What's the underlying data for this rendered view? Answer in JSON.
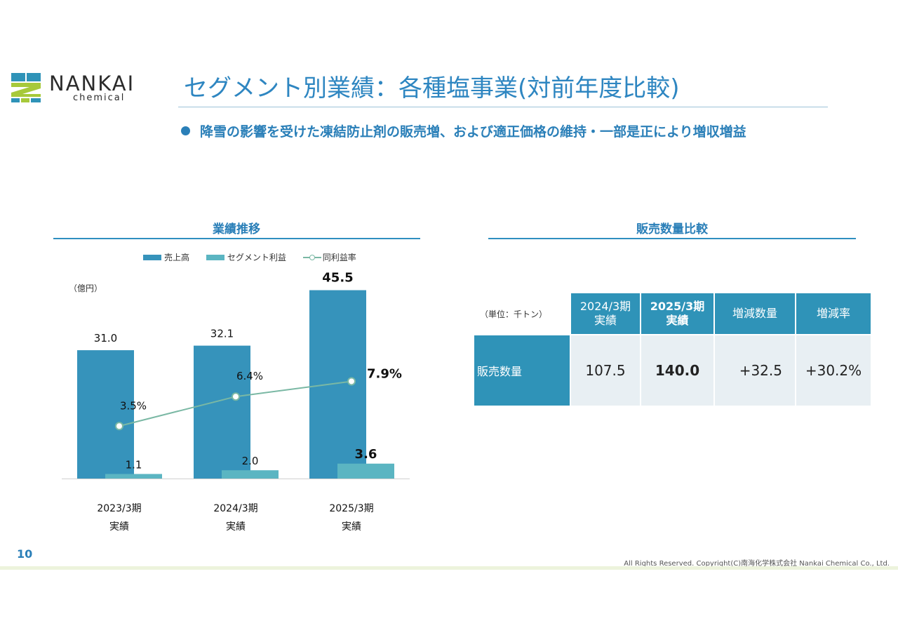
{
  "logo": {
    "word": "NANKAI",
    "sub": "chemical",
    "colors": {
      "teal": "#2f93b8",
      "lime": "#a7c93a"
    }
  },
  "header": {
    "title": "セグメント別業績：各種塩事業(対前年度比較)",
    "bullet": "降雪の影響を受けた凍結防止剤の販売増、および適正価格の維持・一部是正により増収増益"
  },
  "left_section": {
    "heading": "業績推移"
  },
  "right_section": {
    "heading": "販売数量比較"
  },
  "chart_data": {
    "type": "bar",
    "categories": [
      "2023/3期\n実績",
      "2024/3期\n実績",
      "2025/3期\n実績"
    ],
    "category_lines": [
      [
        "2023/3期",
        "実績"
      ],
      [
        "2024/3期",
        "実績"
      ],
      [
        "2025/3期",
        "実績"
      ]
    ],
    "unit": "（億円）",
    "ylim": [
      0,
      50
    ],
    "grid": false,
    "legend_position": "top",
    "series": [
      {
        "name": "売上高",
        "kind": "bar",
        "color": "#3693bb",
        "values": [
          31.0,
          32.1,
          45.5
        ],
        "labels": [
          "31.0",
          "32.1",
          "45.5"
        ]
      },
      {
        "name": "セグメント利益",
        "kind": "bar",
        "color": "#5bb5c2",
        "values": [
          1.1,
          2.0,
          3.6
        ],
        "labels": [
          "1.1",
          "2.0",
          "3.6"
        ]
      },
      {
        "name": "同利益率",
        "kind": "line",
        "color": "#7ab8a4",
        "values": [
          3.5,
          6.4,
          7.9
        ],
        "labels": [
          "3.5%",
          "6.4%",
          "7.9%"
        ]
      }
    ],
    "highlight_last": true
  },
  "table": {
    "unit": "（単位：千トン）",
    "headers": [
      {
        "line1": "2024/3期",
        "line2": "実績",
        "bold": false
      },
      {
        "line1": "2025/3期",
        "line2": "実績",
        "bold": true
      },
      {
        "line1": "増減数量",
        "line2": "",
        "bold": false
      },
      {
        "line1": "増減率",
        "line2": "",
        "bold": false
      }
    ],
    "row_label": "販売数量",
    "values": [
      "107.5",
      "140.0",
      "+32.5",
      "+30.2%"
    ]
  },
  "footer": {
    "page": "10",
    "copyright": "All Rights Reserved. Copyright(C)南海化学株式会社 Nankai Chemical Co., Ltd."
  }
}
